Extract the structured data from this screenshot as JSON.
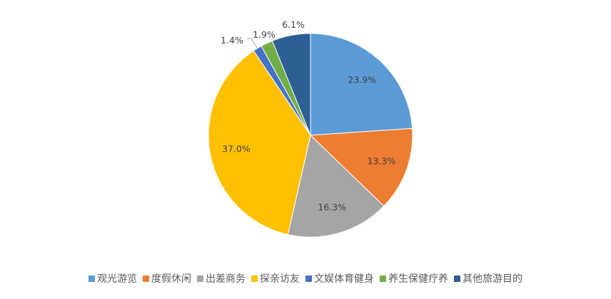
{
  "chart_data": {
    "type": "pie",
    "title": "",
    "start": "top, clockwise",
    "categories": [
      "观光游览",
      "度假休闲",
      "出差商务",
      "探亲访友",
      "文娱体育健身",
      "养生保健疗养",
      "其他旅游目的"
    ],
    "values": [
      23.9,
      13.3,
      16.3,
      37.0,
      1.4,
      1.9,
      6.1
    ],
    "labels": [
      "23.9%",
      "13.3%",
      "16.3%",
      "37.0%",
      "1.4%",
      "1.9%",
      "6.1%"
    ],
    "colors": [
      "#5B9BD5",
      "#ED7D31",
      "#A5A5A5",
      "#FFC000",
      "#4472C4",
      "#70AD47",
      "#2E5F94"
    ],
    "legend_position": "bottom"
  }
}
